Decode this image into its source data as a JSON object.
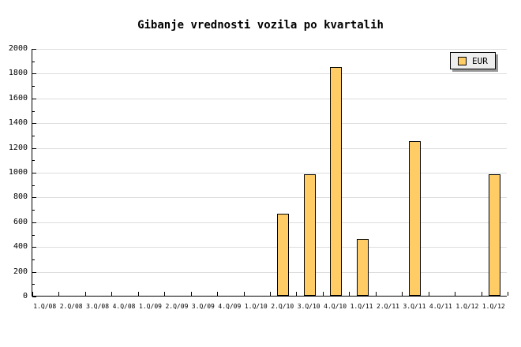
{
  "title": "Gibanje vrednosti vozila po kvartalih",
  "legend": {
    "label": "EUR"
  },
  "colors": {
    "background": "#FFFFFF",
    "bar_fill": "#FFCC66",
    "bar_border": "#000000",
    "grid": "#DDDDDD",
    "axis": "#000000",
    "text": "#000000",
    "legend_bg": "#EEEEEE",
    "legend_shadow": "#999999"
  },
  "chart_data": {
    "type": "bar",
    "title": "Gibanje vrednosti vozila po kvartalih",
    "xlabel": "",
    "ylabel": "",
    "ylim": [
      0,
      2000
    ],
    "y_major_step": 200,
    "y_minor_step": 100,
    "grid": true,
    "legend_position": "top-right",
    "categories": [
      "1.Q/08",
      "2.Q/08",
      "3.Q/08",
      "4.Q/08",
      "1.Q/09",
      "2.Q/09",
      "3.Q/09",
      "4.Q/09",
      "1.Q/10",
      "2.Q/10",
      "3.Q/10",
      "4.Q/10",
      "1.Q/11",
      "2.Q/11",
      "3.Q/11",
      "4.Q/11",
      "1.Q/12",
      "1.Q/12"
    ],
    "y_tick_labels": [
      "0",
      "200",
      "400",
      "600",
      "800",
      "1000",
      "1200",
      "1400",
      "1600",
      "1800",
      "2000"
    ],
    "series": [
      {
        "name": "EUR",
        "values": [
          0,
          0,
          0,
          0,
          0,
          0,
          0,
          0,
          0,
          660,
          980,
          1850,
          460,
          0,
          1250,
          0,
          0,
          980
        ]
      }
    ]
  }
}
